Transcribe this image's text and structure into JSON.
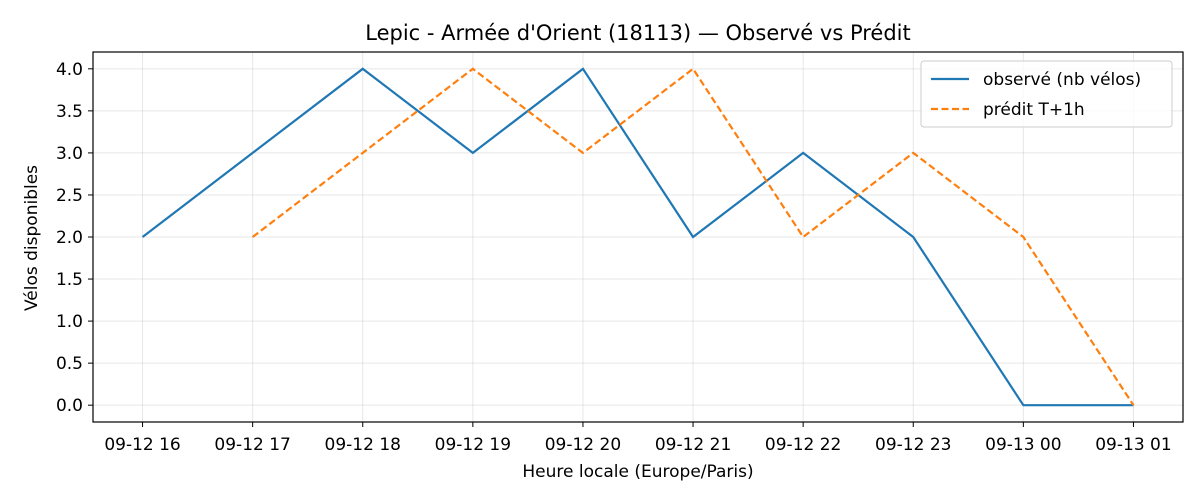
{
  "chart_data": {
    "type": "line",
    "title": "Lepic - Armée d'Orient (18113) — Observé vs Prédit",
    "xlabel": "Heure locale (Europe/Paris)",
    "ylabel": "Vélos disponibles",
    "x": [
      "09-12 16",
      "09-12 17",
      "09-12 18",
      "09-12 19",
      "09-12 20",
      "09-12 21",
      "09-12 22",
      "09-12 23",
      "09-13 00",
      "09-13 01"
    ],
    "ylim": [
      -0.2,
      4.2
    ],
    "yticks": [
      "0.0",
      "0.5",
      "1.0",
      "1.5",
      "2.0",
      "2.5",
      "3.0",
      "3.5",
      "4.0"
    ],
    "grid": true,
    "legend_position": "top-right",
    "series": [
      {
        "name": "observé (nb vélos)",
        "values": [
          2,
          3,
          4,
          3,
          4,
          2,
          3,
          2,
          0,
          0
        ],
        "color": "#1f77b4",
        "style": "solid"
      },
      {
        "name": "prédit T+1h",
        "values": [
          null,
          2,
          3,
          4,
          3,
          4,
          2,
          3,
          2,
          0
        ],
        "color": "#ff7f0e",
        "style": "dashed"
      }
    ]
  }
}
